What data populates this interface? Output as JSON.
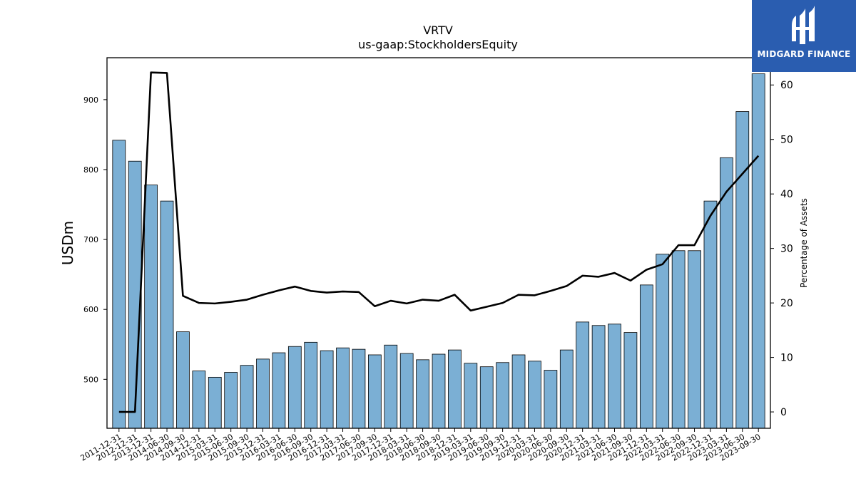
{
  "logo": {
    "text": "MIDGARD FINANCE",
    "bg": "#2a5db0"
  },
  "chart_data": {
    "type": "bar",
    "title": "VRTV",
    "subtitle": "us-gaap:StockholdersEquity",
    "ylabel": "USDm",
    "y2label": "Percentage of Assets",
    "ylim": [
      430,
      960
    ],
    "y2lim": [
      -3,
      65
    ],
    "yticks": [
      500,
      600,
      700,
      800,
      900
    ],
    "y2ticks": [
      0,
      10,
      20,
      30,
      40,
      50,
      60
    ],
    "bar_color": "#7bafd4",
    "line_color": "#000000",
    "categories": [
      "2011-12-31",
      "2012-12-31",
      "2013-12-31",
      "2014-06-30",
      "2014-09-30",
      "2014-12-31",
      "2015-03-31",
      "2015-06-30",
      "2015-09-30",
      "2015-12-31",
      "2016-03-31",
      "2016-06-30",
      "2016-09-30",
      "2016-12-31",
      "2017-03-31",
      "2017-06-30",
      "2017-09-30",
      "2017-12-31",
      "2018-03-31",
      "2018-06-30",
      "2018-09-30",
      "2018-12-31",
      "2019-03-31",
      "2019-06-30",
      "2019-09-30",
      "2019-12-31",
      "2020-03-31",
      "2020-06-30",
      "2020-09-30",
      "2020-12-31",
      "2021-03-31",
      "2021-06-30",
      "2021-09-30",
      "2021-12-31",
      "2022-03-31",
      "2022-06-30",
      "2022-09-30",
      "2022-12-31",
      "2023-03-31",
      "2023-06-30",
      "2023-09-30"
    ],
    "series": [
      {
        "values": [
          842,
          812,
          778,
          755,
          568,
          512,
          503,
          510,
          520,
          529,
          538,
          547,
          553,
          541,
          545,
          543,
          535,
          549,
          537,
          528,
          536,
          542,
          523,
          518,
          524,
          535,
          526,
          513,
          542,
          582,
          577,
          579,
          567,
          635,
          679,
          684,
          684,
          755,
          817,
          883,
          937
        ]
      },
      {
        "axis": "right",
        "values": [
          0,
          0,
          62.3,
          62.2,
          21.3,
          20.0,
          19.9,
          20.2,
          20.6,
          21.5,
          22.3,
          23.0,
          22.2,
          21.9,
          22.1,
          22.0,
          19.4,
          20.4,
          19.9,
          20.6,
          20.4,
          21.5,
          18.6,
          19.3,
          20.0,
          21.5,
          21.4,
          22.2,
          23.1,
          25.0,
          24.8,
          25.5,
          24.1,
          26.1,
          27.1,
          30.6,
          30.6,
          36.0,
          40.4,
          43.7,
          47.0
        ]
      }
    ]
  }
}
